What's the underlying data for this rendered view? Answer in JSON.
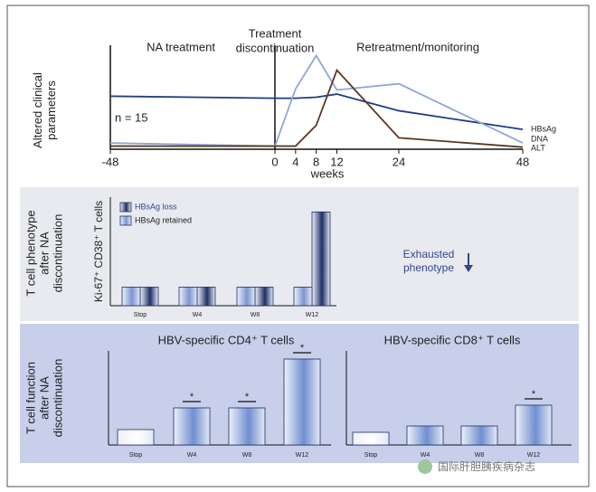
{
  "chart_data": [
    {
      "type": "line",
      "y_label": [
        "Altered clinical",
        "parameters"
      ],
      "x_label": "weeks",
      "annotations": [
        "NA treatment",
        "Treatment",
        "discontinuation",
        "Retreatment/monitoring",
        "n = 15"
      ],
      "x": [
        -48,
        0,
        4,
        8,
        12,
        24,
        48
      ],
      "xlim": [
        -48,
        48
      ],
      "xticks": [
        -48,
        0,
        4,
        8,
        12,
        24,
        48
      ],
      "ylim": [
        0,
        100
      ],
      "series": [
        {
          "name": "HBsAg",
          "color": "#1f3f7f",
          "values": [
            51,
            49,
            49,
            50,
            53,
            37,
            19
          ]
        },
        {
          "name": "DNA",
          "color": "#8fa6d8",
          "values": [
            6,
            3,
            58,
            90,
            57,
            63,
            6
          ]
        },
        {
          "name": "ALT",
          "color": "#5a3a24",
          "values": [
            3,
            3,
            3,
            23,
            76,
            11,
            2
          ]
        }
      ]
    },
    {
      "type": "groupbar",
      "y_label": "Ki-67⁺ CD38⁺ T cells",
      "panel_label": [
        "T cell phenotype",
        "after NA",
        "discontinuation"
      ],
      "annotation": [
        "Exhausted",
        "phenotype"
      ],
      "categories": [
        "Stop",
        "W4",
        "W8",
        "W12"
      ],
      "ylim": [
        0,
        100
      ],
      "series": [
        {
          "name": "HBsAg loss",
          "color": "#1e2f66",
          "values": [
            19,
            19,
            19,
            96
          ]
        },
        {
          "name": "HBsAg retained",
          "color": "#7b96d2",
          "values": [
            19,
            19,
            19,
            19
          ]
        }
      ]
    },
    {
      "type": "bar",
      "title": "HBV-specific CD4⁺ T cells",
      "panel_label": [
        "T cell function",
        "after NA",
        "discontinuation"
      ],
      "categories": [
        "Stop",
        "W4",
        "W8",
        "W12"
      ],
      "values": [
        17,
        41,
        41,
        95
      ],
      "colors": [
        "#ffffff",
        "#6f8fd0",
        "#6f8fd0",
        "#6f8fd0"
      ],
      "significance_labels": [
        null,
        "*",
        "*",
        "*"
      ],
      "ylim": [
        0,
        100
      ]
    },
    {
      "type": "bar",
      "title": "HBV-specific CD8⁺ T cells",
      "categories": [
        "Stop",
        "W4",
        "W8",
        "W12"
      ],
      "values": [
        14,
        21,
        21,
        44
      ],
      "colors": [
        "#ffffff",
        "#6f8fd0",
        "#6f8fd0",
        "#6f8fd0"
      ],
      "significance_labels": [
        null,
        null,
        null,
        "*"
      ],
      "ylim": [
        0,
        100
      ]
    }
  ],
  "watermark": "国际肝胆胰疾病杂志"
}
